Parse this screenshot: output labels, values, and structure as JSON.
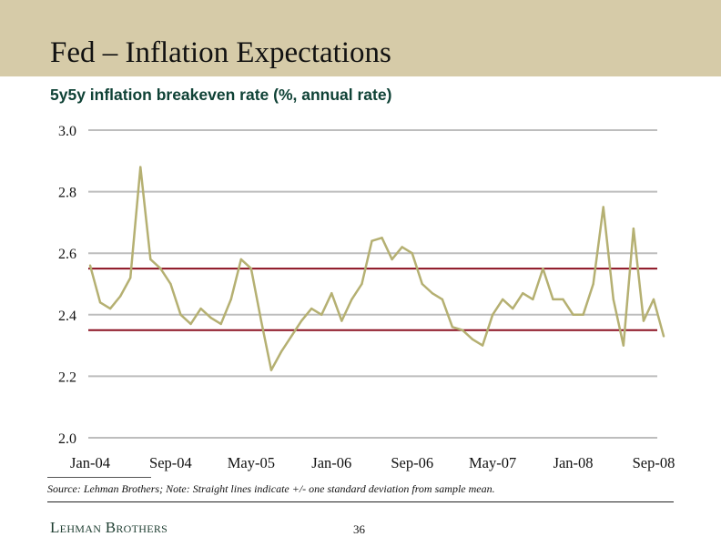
{
  "header": {
    "title": "Fed – Inflation Expectations"
  },
  "chart_data": {
    "type": "line",
    "title": "5y5y inflation breakeven rate (%, annual rate)",
    "xlabel": "",
    "ylabel": "",
    "ylim": [
      2.0,
      3.0
    ],
    "yticks": [
      "3.0",
      "2.8",
      "2.6",
      "2.4",
      "2.2",
      "2.0"
    ],
    "xticks": [
      "Jan-04",
      "Sep-04",
      "May-05",
      "Jan-06",
      "Sep-06",
      "May-07",
      "Jan-08",
      "Sep-08"
    ],
    "xrange": [
      "2004-01",
      "2008-09"
    ],
    "grid": true,
    "series": [
      {
        "color": "#b5b072",
        "x": [
          "2004-01",
          "2004-02",
          "2004-03",
          "2004-04",
          "2004-05",
          "2004-06",
          "2004-07",
          "2004-08",
          "2004-09",
          "2004-10",
          "2004-11",
          "2004-12",
          "2005-01",
          "2005-02",
          "2005-03",
          "2005-04",
          "2005-05",
          "2005-06",
          "2005-07",
          "2005-08",
          "2005-09",
          "2005-10",
          "2005-11",
          "2005-12",
          "2006-01",
          "2006-02",
          "2006-03",
          "2006-04",
          "2006-05",
          "2006-06",
          "2006-07",
          "2006-08",
          "2006-09",
          "2006-10",
          "2006-11",
          "2006-12",
          "2007-01",
          "2007-02",
          "2007-03",
          "2007-04",
          "2007-05",
          "2007-06",
          "2007-07",
          "2007-08",
          "2007-09",
          "2007-10",
          "2007-11",
          "2007-12",
          "2008-01",
          "2008-02",
          "2008-03",
          "2008-04",
          "2008-05",
          "2008-06",
          "2008-07",
          "2008-08",
          "2008-09",
          "2008-10"
        ],
        "y": [
          2.56,
          2.44,
          2.42,
          2.46,
          2.52,
          2.88,
          2.58,
          2.55,
          2.5,
          2.4,
          2.37,
          2.42,
          2.39,
          2.37,
          2.45,
          2.58,
          2.55,
          2.38,
          2.22,
          2.28,
          2.33,
          2.38,
          2.42,
          2.4,
          2.47,
          2.38,
          2.45,
          2.5,
          2.64,
          2.65,
          2.58,
          2.62,
          2.6,
          2.5,
          2.47,
          2.45,
          2.36,
          2.35,
          2.32,
          2.3,
          2.4,
          2.45,
          2.42,
          2.47,
          2.45,
          2.55,
          2.45,
          2.45,
          2.4,
          2.4,
          2.5,
          2.75,
          2.45,
          2.3,
          2.68,
          2.38,
          2.45,
          2.33
        ]
      }
    ],
    "reference_lines": [
      {
        "y": 2.55,
        "color": "#8b1020"
      },
      {
        "y": 2.35,
        "color": "#8b1020"
      }
    ]
  },
  "footer": {
    "source": "Source: Lehman Brothers; Note: Straight lines indicate +/- one standard deviation from sample mean.",
    "logo": "Lehman Brothers",
    "page_number": "36"
  }
}
